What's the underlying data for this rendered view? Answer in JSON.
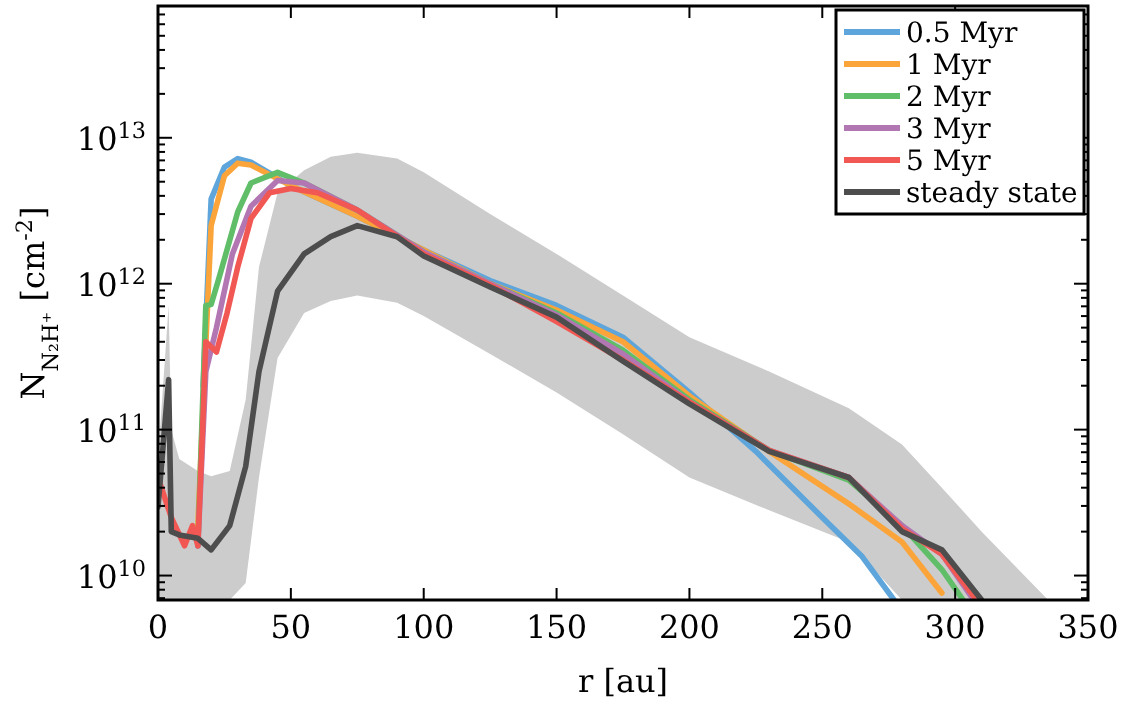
{
  "chart_data": {
    "type": "line",
    "xlabel": "r [au]",
    "ylabel": "N$_{N₂H⁺}$ [cm$^{-2}$]",
    "log": "y",
    "xlim": [
      0,
      350
    ],
    "xticks": [
      0,
      50,
      100,
      150,
      200,
      250,
      300,
      350
    ],
    "ylim": [
      6800000000.0,
      80000000000000.0
    ],
    "yticks": [
      {
        "value": 7000000000.0,
        "label": null
      },
      {
        "value": 8000000000.0,
        "label": null
      },
      {
        "value": 9000000000.0,
        "label": null
      },
      {
        "value": 10000000000.0,
        "label": "10$^{10}$"
      },
      {
        "value": 20000000000.0,
        "label": null
      },
      {
        "value": 30000000000.0,
        "label": null
      },
      {
        "value": 40000000000.0,
        "label": null
      },
      {
        "value": 50000000000.0,
        "label": null
      },
      {
        "value": 60000000000.0,
        "label": null
      },
      {
        "value": 70000000000.0,
        "label": null
      },
      {
        "value": 80000000000.0,
        "label": null
      },
      {
        "value": 90000000000.0,
        "label": null
      },
      {
        "value": 100000000000.0,
        "label": "10$^{11}$"
      },
      {
        "value": 200000000000.0,
        "label": null
      },
      {
        "value": 300000000000.0,
        "label": null
      },
      {
        "value": 400000000000.0,
        "label": null
      },
      {
        "value": 500000000000.0,
        "label": null
      },
      {
        "value": 600000000000.0,
        "label": null
      },
      {
        "value": 700000000000.0,
        "label": null
      },
      {
        "value": 800000000000.0,
        "label": null
      },
      {
        "value": 900000000000.0,
        "label": null
      },
      {
        "value": 1000000000000.0,
        "label": "10$^{12}$"
      },
      {
        "value": 2000000000000.0,
        "label": null
      },
      {
        "value": 3000000000000.0,
        "label": null
      },
      {
        "value": 4000000000000.0,
        "label": null
      },
      {
        "value": 5000000000000.0,
        "label": null
      },
      {
        "value": 6000000000000.0,
        "label": null
      },
      {
        "value": 7000000000000.0,
        "label": null
      },
      {
        "value": 8000000000000.0,
        "label": null
      },
      {
        "value": 9000000000000.0,
        "label": null
      },
      {
        "value": 10000000000000.0,
        "label": "10$^{13}$"
      },
      {
        "value": 20000000000000.0,
        "label": null
      },
      {
        "value": 30000000000000.0,
        "label": null
      },
      {
        "value": 40000000000000.0,
        "label": null
      },
      {
        "value": 50000000000000.0,
        "label": null
      },
      {
        "value": 60000000000000.0,
        "label": null
      },
      {
        "value": 70000000000000.0,
        "label": null
      },
      {
        "value": 80000000000000.0,
        "label": null
      }
    ],
    "grid": false,
    "legend": "top right",
    "line_style": "solid",
    "marker": "none",
    "series": [
      {
        "name": "0.5 Myr",
        "color": "#5da5da",
        "x": [
          17,
          20,
          25,
          30,
          35,
          50,
          75,
          100,
          125,
          150,
          175,
          200,
          225,
          250,
          265,
          277
        ],
        "values": [
          200000000000.0,
          3800000000000.0,
          6300000000000.0,
          7200000000000.0,
          6800000000000.0,
          4700000000000.0,
          2900000000000.0,
          1700000000000.0,
          1050000000000.0,
          710000000000.0,
          430000000000.0,
          180000000000.0,
          71000000000.0,
          25000000000.0,
          13500000000.0,
          6800000000.0
        ]
      },
      {
        "name": "1 Myr",
        "color": "#faa43a",
        "x": [
          15,
          17,
          20,
          25,
          30,
          35,
          50,
          75,
          100,
          125,
          150,
          175,
          200,
          230,
          260,
          280,
          295
        ],
        "values": [
          22000000000.0,
          150000000000.0,
          2500000000000.0,
          5500000000000.0,
          6700000000000.0,
          6500000000000.0,
          4700000000000.0,
          2900000000000.0,
          1700000000000.0,
          1000000000000.0,
          660000000000.0,
          400000000000.0,
          170000000000.0,
          71000000000.0,
          31000000000.0,
          17000000000.0,
          7600000000.0
        ]
      },
      {
        "name": "2 Myr",
        "color": "#60bd68",
        "x": [
          15,
          18,
          20,
          23,
          30,
          35,
          45,
          55,
          75,
          100,
          125,
          150,
          175,
          200,
          230,
          260,
          280,
          295,
          303
        ],
        "values": [
          16000000000.0,
          710000000000.0,
          720000000000.0,
          1100000000000.0,
          3100000000000.0,
          4900000000000.0,
          5800000000000.0,
          4900000000000.0,
          3200000000000.0,
          1650000000000.0,
          1000000000000.0,
          630000000000.0,
          350000000000.0,
          160000000000.0,
          72000000000.0,
          45000000000.0,
          22000000000.0,
          11000000000.0,
          6800000000.0
        ]
      },
      {
        "name": "3 Myr",
        "color": "#b276b2",
        "x": [
          15,
          18,
          22,
          28,
          35,
          45,
          55,
          75,
          100,
          125,
          150,
          175,
          200,
          230,
          260,
          280,
          295,
          307
        ],
        "values": [
          16000000000.0,
          250000000000.0,
          500000000000.0,
          1600000000000.0,
          3400000000000.0,
          5100000000000.0,
          4900000000000.0,
          3200000000000.0,
          1650000000000.0,
          1000000000000.0,
          610000000000.0,
          330000000000.0,
          155000000000.0,
          72000000000.0,
          47000000000.0,
          22000000000.0,
          14000000000.0,
          6800000000.0
        ]
      },
      {
        "name": "5 Myr",
        "color": "#f15854",
        "x": [
          0,
          5,
          10,
          13,
          15,
          17,
          18,
          22,
          26,
          30,
          35,
          42,
          50,
          60,
          75,
          100,
          125,
          150,
          175,
          200,
          230,
          260,
          280,
          295,
          308
        ],
        "values": [
          47000000000.0,
          25000000000.0,
          16000000000.0,
          22000000000.0,
          16000000000.0,
          130000000000.0,
          400000000000.0,
          340000000000.0,
          630000000000.0,
          1300000000000.0,
          2800000000000.0,
          4200000000000.0,
          4500000000000.0,
          4200000000000.0,
          3200000000000.0,
          1600000000000.0,
          980000000000.0,
          550000000000.0,
          300000000000.0,
          155000000000.0,
          72000000000.0,
          47000000000.0,
          21000000000.0,
          14000000000.0,
          6800000000.0
        ]
      },
      {
        "name": "steady state",
        "color": "#4d4d4d",
        "x": [
          0,
          4,
          5,
          8,
          15,
          20,
          27,
          33,
          38,
          45,
          55,
          65,
          75,
          90,
          100,
          125,
          150,
          175,
          200,
          230,
          260,
          280,
          295,
          310,
          335
        ],
        "values": [
          29500000000.0,
          220000000000.0,
          20000000000.0,
          19000000000.0,
          18000000000.0,
          15000000000.0,
          22000000000.0,
          56000000000.0,
          250000000000.0,
          890000000000.0,
          1600000000000.0,
          2100000000000.0,
          2500000000000.0,
          2100000000000.0,
          1550000000000.0,
          950000000000.0,
          590000000000.0,
          295000000000.0,
          150000000000.0,
          71000000000.0,
          47000000000.0,
          20000000000.0,
          15000000000.0,
          6800000000.0,
          null
        ],
        "upper": [
          63000000000.0,
          710000000000.0,
          100000000000.0,
          63000000000.0,
          52000000000.0,
          48000000000.0,
          52000000000.0,
          160000000000.0,
          1300000000000.0,
          4200000000000.0,
          6000000000000.0,
          7400000000000.0,
          7900000000000.0,
          7200000000000.0,
          5800000000000.0,
          3000000000000.0,
          1600000000000.0,
          830000000000.0,
          430000000000.0,
          250000000000.0,
          140000000000.0,
          79000000000.0,
          40000000000.0,
          20000000000.0,
          6800000000.0
        ],
        "lower": [
          6800000000.0,
          6800000000.0,
          6800000000.0,
          6800000000.0,
          6800000000.0,
          6800000000.0,
          6800000000.0,
          8900000000.0,
          47000000000.0,
          310000000000.0,
          630000000000.0,
          760000000000.0,
          830000000000.0,
          740000000000.0,
          600000000000.0,
          330000000000.0,
          180000000000.0,
          93000000000.0,
          47000000000.0,
          28000000000.0,
          17000000000.0,
          6800000000.0,
          6800000000.0,
          6800000000.0,
          6800000000.0
        ]
      }
    ]
  }
}
